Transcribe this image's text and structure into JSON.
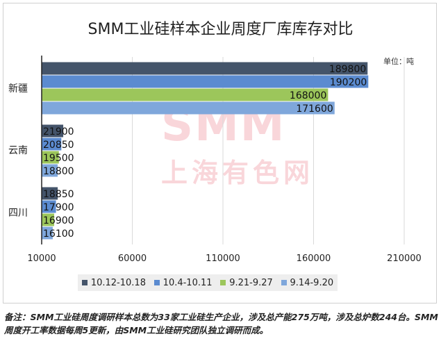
{
  "chart_data": {
    "type": "bar",
    "orientation": "horizontal",
    "title": "SMM工业硅样本企业周度厂库库存对比",
    "unit_label": "单位：吨",
    "categories": [
      "新疆",
      "云南",
      "四川"
    ],
    "series": [
      {
        "name": "10.12-10.18",
        "color": "#44546A",
        "values": [
          189800,
          21900,
          18850
        ]
      },
      {
        "name": "10.4-10.11",
        "color": "#5B8BD0",
        "values": [
          190200,
          20850,
          17900
        ]
      },
      {
        "name": "9.21-9.27",
        "color": "#9CC65B",
        "values": [
          168000,
          19500,
          16900
        ]
      },
      {
        "name": "9.14-9.20",
        "color": "#7FA7DB",
        "values": [
          171600,
          18800,
          16100
        ]
      }
    ],
    "data_labels": [
      [
        "189800",
        "21900",
        "18850"
      ],
      [
        "190200",
        "20850",
        "17900"
      ],
      [
        "168000",
        "19500",
        "16900"
      ],
      [
        "171600",
        "18800",
        "16100"
      ]
    ],
    "xlim": [
      10000,
      210000
    ],
    "xticks": [
      10000,
      60000,
      110000,
      160000,
      210000
    ],
    "xtick_labels": [
      "10000",
      "60000",
      "110000",
      "160000",
      "210000"
    ],
    "grid": true,
    "legend_position": "bottom"
  },
  "watermark": {
    "line1": "SMM",
    "line2": "上海有色网"
  },
  "footnote": "备注：SMM工业硅周度调研样本总数为33家工业硅生产企业，涉及总产能275万吨，涉及总炉数244台。SMM周度开工率数据每周5更新，由SMM工业硅研究团队独立调研而成。"
}
